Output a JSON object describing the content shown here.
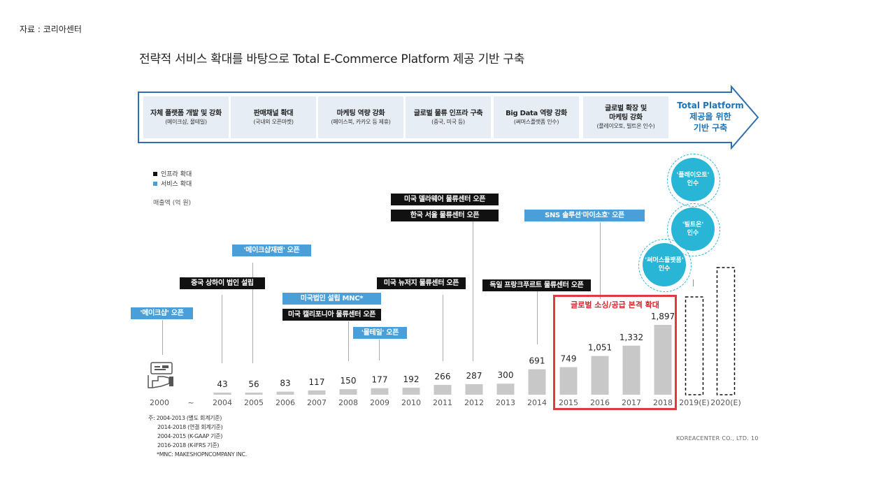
{
  "source": "자료 : 코리아센터",
  "title": "전략적 서비스 확대를 바탕으로 Total E-Commerce Platform 제공 기반 구축",
  "stages": [
    {
      "title": "자체 플랫폼 개발 및 강화",
      "sub": "(메이크샵, 몰테일)"
    },
    {
      "title": "판매채널 확대",
      "sub": "(국내외 오픈마켓)"
    },
    {
      "title": "마케팅 역량 강화",
      "sub": "(페이스북, 카카오 등 제휴)"
    },
    {
      "title": "글로벌 물류 인프라 구축",
      "sub": "(중국, 미국 등)"
    },
    {
      "title": "Big Data 역량 강화",
      "sub": "(써머스플랫폼 인수)"
    },
    {
      "title": "글로벌 확장 및\n마케팅 강화",
      "sub": "(플레이오토, 빌트온 인수)"
    }
  ],
  "goal": {
    "line1": "Total Platform",
    "line2": "제공을 위한",
    "line3": "기반 구축"
  },
  "legend": [
    {
      "label": "인프라 확대",
      "color": "#111111"
    },
    {
      "label": "서비스 확대",
      "color": "#4a9fd8"
    }
  ],
  "unit_label": "매출액 (억 원)",
  "events": [
    {
      "label": "'메이크샵' 오픈",
      "kind": "service"
    },
    {
      "label": "중국 상하이 법인 설립",
      "kind": "infra"
    },
    {
      "label": "'메이크샵재팬' 오픈",
      "kind": "service"
    },
    {
      "label": "미국법인 설립 MNC*",
      "kind": "service"
    },
    {
      "label": "미국 캘리포니아 물류센터 오픈",
      "kind": "infra"
    },
    {
      "label": "'몰테일' 오픈",
      "kind": "service"
    },
    {
      "label": "미국 뉴저지 물류센터 오픈",
      "kind": "infra"
    },
    {
      "label": "미국 델라웨어 물류센터 오픈",
      "kind": "infra"
    },
    {
      "label": "한국 서울 물류센터 오픈",
      "kind": "infra"
    },
    {
      "label": "SNS 솔루션'마이소호' 오픈",
      "kind": "service"
    },
    {
      "label": "독일 프랑크푸르트 물류센터 오픈",
      "kind": "infra"
    }
  ],
  "acquisitions": [
    {
      "line1": "'플레이오토'",
      "line2": "인수"
    },
    {
      "line1": "'빌트온'",
      "line2": "인수"
    },
    {
      "line1": "'써머스플랫폼'",
      "line2": "인수"
    }
  ],
  "highlight_label": "글로벌 소싱/공급 본격 확대",
  "chart_data": {
    "type": "bar",
    "title": "",
    "ylabel": "매출액 (억 원)",
    "categories": [
      "2000",
      "~",
      "2004",
      "2005",
      "2006",
      "2007",
      "2008",
      "2009",
      "2010",
      "2011",
      "2012",
      "2013",
      "2014",
      "2015",
      "2016",
      "2017",
      "2018",
      "2019(E)",
      "2020(E)"
    ],
    "values": [
      null,
      null,
      43,
      56,
      83,
      117,
      150,
      177,
      192,
      266,
      287,
      300,
      691,
      749,
      1051,
      1332,
      1897,
      null,
      null
    ],
    "value_labels": [
      "",
      "",
      "43",
      "56",
      "83",
      "117",
      "150",
      "177",
      "192",
      "266",
      "287",
      "300",
      "691",
      "749",
      "1,051",
      "1,332",
      "1,897",
      "",
      ""
    ],
    "estimated": [
      "2019(E)",
      "2020(E)"
    ],
    "ylim": [
      0,
      1897
    ]
  },
  "notes": [
    "주: 2004-2013 (별도 회계기준)",
    "2014-2018 (연결 회계기준)",
    "2004-2015 (K-GAAP 기준)",
    "2016-2018 (K-IFRS 기준)",
    "*MNC: MAKESHOPNCOMPANY INC."
  ],
  "footer": "KOREACENTER CO., LTD.  10",
  "colors": {
    "bar": "#c8c8c8",
    "accent": "#1a73b8",
    "highlight": "#e0393e",
    "circle": "#29b6d6"
  }
}
